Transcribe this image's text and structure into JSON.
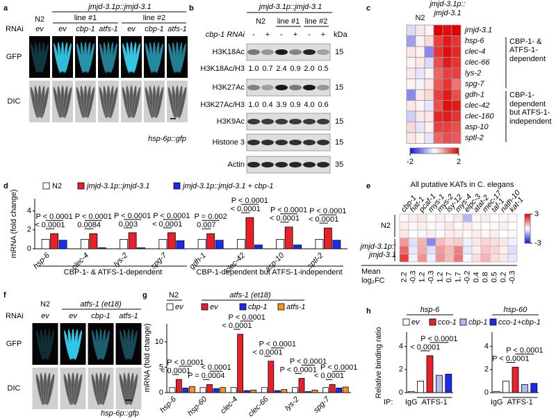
{
  "panels": {
    "a": {
      "label": "a",
      "header": "jmjd-3.1p::jmjd-3.1",
      "strains": [
        "N2",
        "line #1",
        "line #2"
      ],
      "rnai": "RNAi",
      "conditions": [
        "ev",
        "ev",
        "cbp-1",
        "atfs-1",
        "ev",
        "cbp-1",
        "atfs-1"
      ],
      "rows": [
        "GFP",
        "DIC"
      ],
      "reporter": "hsp-6p::gfp"
    },
    "b": {
      "label": "b",
      "header": "jmjd-3.1p::jmjd-3.1",
      "strains": [
        "N2",
        "line #1",
        "line #2"
      ],
      "rnai": "cbp-1 RNAi",
      "signs": [
        "-",
        "+",
        "-",
        "+",
        "-",
        "+"
      ],
      "unit": "kDa",
      "rows": [
        {
          "name": "H3K18Ac",
          "color": "#e8202a",
          "kda": 15
        },
        {
          "name": "H3K18Ac/H3",
          "ratios": [
            "1.0",
            "0.7",
            "2.4",
            "0.9",
            "2.0",
            "0.5"
          ]
        },
        {
          "name": "H3K27Ac",
          "color": "#e8202a",
          "kda": 15
        },
        {
          "name": "H3K27Ac/H3",
          "ratios": [
            "1.0",
            "0.4",
            "3.9",
            "0.9",
            "4.0",
            "0.6"
          ]
        },
        {
          "name": "H3K9Ac",
          "kda": 15
        },
        {
          "name": "Histone 3",
          "kda": 15
        },
        {
          "name": "Actin",
          "kda": 35
        }
      ]
    },
    "f": {
      "label": "f",
      "strains": [
        "N2",
        "atfs-1 (et18)"
      ],
      "rnai": "RNAi",
      "conditions": [
        "ev",
        "ev",
        "cbp-1",
        "atfs-1"
      ],
      "rows": [
        "GFP",
        "DIC"
      ],
      "reporter": "hsp-6p::gfp"
    },
    "h": {
      "label": "h",
      "ylabel": "Relative binding ratio",
      "ip": "IP:",
      "legend": [
        {
          "name": "ev",
          "color": "#ffffff"
        },
        {
          "name": "cco-1",
          "color": "#e8202a"
        },
        {
          "name": "cbp-1",
          "color": "#b3b9ee"
        },
        {
          "name": "cco-1+cbp-1",
          "color": "#1a2cf0"
        }
      ]
    }
  },
  "chart_data": [
    {
      "type": "heatmap",
      "label": "c",
      "column_groups": [
        "N2",
        "jmjd-3.1p:: jmjd-3.1"
      ],
      "rows": [
        "jmjd-3.1",
        "hsp-6",
        "clec-4",
        "clec-66",
        "lys-2",
        "spg-7",
        "gdh-1",
        "clec-42",
        "clec-160",
        "asp-10",
        "sptl-2"
      ],
      "row_colors": [
        "#000000",
        "#e8202a",
        "#e8202a",
        "#e8202a",
        "#e8202a",
        "#e8202a",
        "#1a2cf0",
        "#1a2cf0",
        "#1a2cf0",
        "#1a2cf0",
        "#1a2cf0"
      ],
      "row_groups": [
        "CBP-1- & ATFS-1-dependent",
        "CBP-1-dependent but ATFS-1-independent"
      ],
      "values": [
        [
          -0.3,
          0.2,
          0.1,
          2,
          1.9,
          2
        ],
        [
          -0.8,
          0.1,
          0.3,
          1.5,
          1.8,
          1.6
        ],
        [
          0.2,
          0.1,
          -1,
          1.6,
          1.9,
          1.7
        ],
        [
          0.1,
          0.2,
          -0.3,
          1.4,
          1.8,
          1.6
        ],
        [
          0.2,
          -0.2,
          0.1,
          1.2,
          1.5,
          1.5
        ],
        [
          0.1,
          -0.1,
          0.2,
          1.3,
          1.6,
          1.1
        ],
        [
          -1,
          0.2,
          0.3,
          1.5,
          1.8,
          1.4
        ],
        [
          0.2,
          0.1,
          -0.2,
          1.4,
          1.9,
          1.8
        ],
        [
          -0.4,
          0.2,
          0.2,
          1.7,
          1.8,
          1.6
        ],
        [
          0.3,
          -0.2,
          0.1,
          1.5,
          1.5,
          1.4
        ],
        [
          0.2,
          0.1,
          -0.2,
          1.2,
          1.4,
          1.3
        ]
      ],
      "zlim": [
        -2,
        2
      ],
      "zticks": [
        -2,
        2
      ]
    },
    {
      "type": "grouped_bar",
      "label": "d",
      "ylabel": "mRNA (fold change)",
      "categories": [
        "hsp-6",
        "clec-4",
        "lys-2",
        "spg-7",
        "gdh-1",
        "clec-42",
        "asp-10",
        "sptl-2"
      ],
      "category_groups": [
        "CBP-1- & ATFS-1-dependent",
        "CBP-1-dependent but ATFS-1-independent"
      ],
      "series": [
        {
          "name": "N2",
          "color": "#ffffff",
          "values": [
            1,
            1,
            1,
            1,
            1,
            1,
            1,
            1
          ]
        },
        {
          "name": "jmjd-3.1p::jmjd-3.1",
          "color": "#e8202a",
          "values": [
            1.6,
            1.6,
            1.7,
            1.7,
            1.6,
            3.3,
            2.3,
            2.2
          ]
        },
        {
          "name": "jmjd-3.1p::jmjd-3.1 + cbp-1",
          "color": "#1a2cf0",
          "values": [
            0.9,
            0.1,
            0.1,
            0.85,
            0.9,
            0.4,
            0.4,
            0.9
          ]
        }
      ],
      "p_values": [
        [
          "< 0.0001",
          "P < 0.0001"
        ],
        [
          "0.0084",
          "P < 0.0001"
        ],
        [
          "0.003",
          "P < 0.0001"
        ],
        [
          "< 0.0001",
          "P < 0.0001"
        ],
        [
          "0.007",
          "P = 0.002"
        ],
        [
          "< 0.0001",
          "P < 0.0001"
        ],
        [
          "< 0.0001",
          "P < 0.0001"
        ],
        [
          "< 0.0001",
          "P < 0.0001"
        ]
      ],
      "ylim": [
        0,
        5
      ],
      "yticks": [
        0,
        2,
        4
      ]
    },
    {
      "type": "heatmap",
      "label": "e",
      "title": "All putative KATs in C. elegans",
      "columns": [
        "cbp-1",
        "hat-1",
        "pcaf-1",
        "mys-1",
        "mys-2",
        "lsy-12",
        "mys-4",
        "elpc-3",
        "atat-2",
        "mec-17",
        "taf-1",
        "nath-10",
        "kat-1"
      ],
      "row_groups": [
        "N2",
        "jmjd-3.1p:: jmjd-3.1"
      ],
      "values": [
        [
          0.1,
          0.2,
          0.3,
          0,
          0.2,
          0.1,
          0.3,
          -0.9,
          0.1,
          0.2,
          0,
          0.1,
          0.1
        ],
        [
          0.2,
          0.1,
          0.2,
          0.1,
          0.1,
          0.3,
          0.1,
          0.2,
          0.1,
          0,
          0.1,
          0.2,
          0
        ],
        [
          0.3,
          0,
          0.1,
          0.2,
          0,
          0.2,
          0.2,
          0.1,
          0.2,
          0.1,
          0.2,
          0,
          0.1
        ],
        [
          1.2,
          -0.4,
          0.9,
          -1.5,
          0.8,
          0.5,
          0.6,
          -0.2,
          0.3,
          0.5,
          0.4,
          0.3,
          -0.2
        ],
        [
          1.8,
          -0.3,
          1,
          -0.4,
          1.2,
          0.8,
          1.5,
          -0.3,
          0.2,
          0.7,
          0.5,
          0.2,
          -0.4
        ],
        [
          2.3,
          -0.2,
          1.3,
          -0.2,
          1.3,
          0.8,
          1.6,
          -0.1,
          0.4,
          0.9,
          0.4,
          0.3,
          -0.3
        ]
      ],
      "mean_label": "Mean log₂FC",
      "means": [
        2.2,
        -0.3,
        1.2,
        -0.3,
        1.2,
        0.7,
        1.7,
        -0.2,
        0.4,
        0.8,
        0.5,
        0.2,
        -0.3
      ],
      "zlim": [
        -3,
        3
      ],
      "zticks": [
        3,
        -3
      ]
    },
    {
      "type": "grouped_bar",
      "label": "g",
      "ylabel": "mRNA (fold change)",
      "legend_groups": [
        "N2",
        "atfs-1 (et18)"
      ],
      "categories": [
        "hsp-6",
        "hsp-60",
        "clec-4",
        "clec-66",
        "lys-2",
        "spg-7"
      ],
      "series": [
        {
          "name": "ev",
          "color": "#ffffff",
          "values": [
            1,
            1,
            1,
            1,
            1,
            1
          ]
        },
        {
          "name": "ev",
          "color": "#e8202a",
          "values": [
            2.6,
            1.6,
            11.5,
            6.2,
            2.8,
            1.6
          ]
        },
        {
          "name": "cbp-1",
          "color": "#1a2cf0",
          "values": [
            0.9,
            0.8,
            0.4,
            0.4,
            0.2,
            0.9
          ]
        },
        {
          "name": "atfs-1",
          "color": "#f7931e",
          "values": [
            1.2,
            1,
            0.5,
            0.6,
            0.5,
            1.1
          ]
        }
      ],
      "p_values": [
        [
          "< 0.0001",
          "P < 0.0001"
        ],
        [
          "P = 0.0004",
          "< 0.0001"
        ],
        [
          "< 0.0001",
          "P < 0.0001"
        ],
        [
          "< 0.0001",
          "P < 0.0001"
        ],
        [
          "P < 0.0001",
          "P < 0.0001"
        ],
        [
          "< 0.0001",
          "P < 0.0001"
        ]
      ],
      "ylim": [
        0,
        13
      ],
      "yticks": [
        0,
        5,
        10
      ]
    },
    {
      "type": "bar",
      "title": "hsp-6",
      "categories": [
        "IgG",
        null,
        null,
        null,
        null
      ],
      "category_group": "ATFS-1",
      "values": [
        0.1,
        1,
        3.2,
        1.5,
        1.6
      ],
      "colors": [
        "#ffffff",
        "#ffffff",
        "#e8202a",
        "#b3b9ee",
        "#1a2cf0"
      ],
      "p_values": [
        "< 0.0001",
        "P < 0.0001"
      ],
      "ylim": [
        0,
        5
      ],
      "yticks": [
        0,
        2,
        4
      ]
    },
    {
      "type": "bar",
      "title": "hsp-60",
      "categories": [
        "IgG",
        null,
        null,
        null,
        null
      ],
      "category_group": "ATFS-1",
      "values": [
        0.1,
        1,
        2.2,
        0.7,
        0.8
      ],
      "colors": [
        "#ffffff",
        "#ffffff",
        "#e8202a",
        "#b3b9ee",
        "#1a2cf0"
      ],
      "p_values": [
        "P < 0.0001",
        "P < 0.0001"
      ],
      "ylim": [
        0,
        5
      ],
      "yticks": [
        0,
        2,
        4
      ]
    }
  ]
}
